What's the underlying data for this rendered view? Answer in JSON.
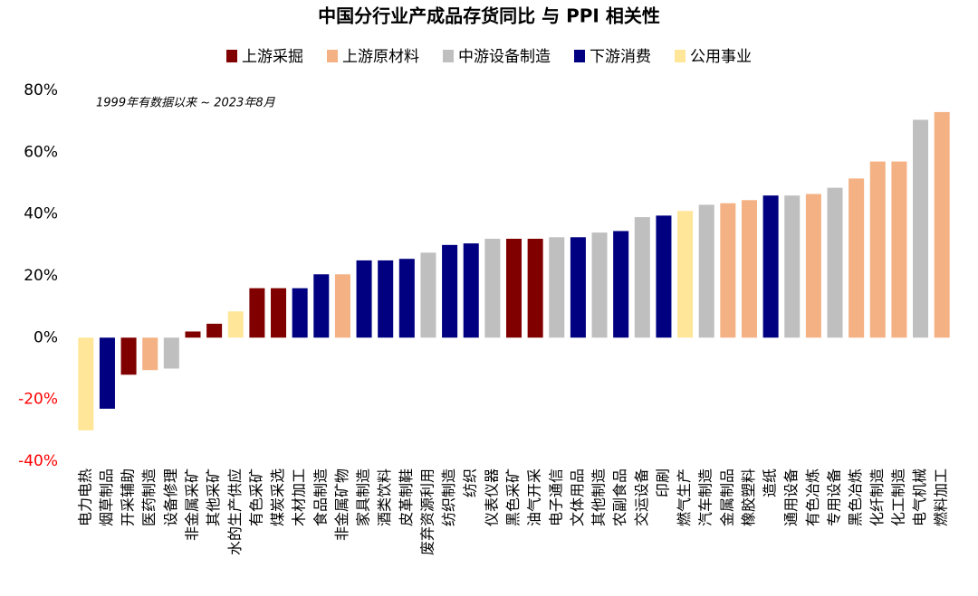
{
  "chart_data": {
    "type": "bar",
    "title": "中国分行业产成品存货同比 与 PPI 相关性",
    "annotation": "1999年有数据以来 ~ 2023年8月",
    "categories": [
      "电力电热",
      "烟草制品",
      "开采辅助",
      "医药制造",
      "设备修理",
      "非金属采矿",
      "其他采矿",
      "水的生产供应",
      "有色采矿",
      "煤炭采选",
      "木材加工",
      "食品制造",
      "非金属矿物",
      "家具制造",
      "酒类饮料",
      "皮革制鞋",
      "废弃资源利用",
      "纺织制造",
      "纺织",
      "仪表仪器",
      "黑色采矿",
      "油气开采",
      "电子通信",
      "文体用品",
      "其他制造",
      "农副食品",
      "交运设备",
      "印刷",
      "燃气生产",
      "汽车制造",
      "金属制品",
      "橡胶塑料",
      "造纸",
      "通用设备",
      "有色冶炼",
      "专用设备",
      "黑色冶炼",
      "化纤制造",
      "化工制造",
      "电气机械",
      "燃料加工"
    ],
    "series": [
      {
        "name": "上游采掘",
        "color": "#800000",
        "values": [
          null,
          null,
          -12,
          null,
          null,
          2,
          4.5,
          null,
          16,
          16,
          null,
          null,
          null,
          null,
          null,
          null,
          null,
          null,
          null,
          null,
          32,
          32,
          null,
          null,
          null,
          null,
          null,
          null,
          null,
          null,
          null,
          null,
          null,
          null,
          null,
          null,
          null,
          null,
          null,
          null,
          null
        ]
      },
      {
        "name": "上游原材料",
        "color": "#f4b183",
        "values": [
          null,
          null,
          null,
          -10.5,
          null,
          null,
          null,
          null,
          null,
          null,
          null,
          null,
          20.5,
          null,
          null,
          null,
          null,
          null,
          null,
          null,
          null,
          null,
          null,
          null,
          null,
          null,
          null,
          null,
          null,
          null,
          43.5,
          44.5,
          null,
          null,
          46.5,
          null,
          51.5,
          57,
          57,
          null,
          73
        ]
      },
      {
        "name": "中游设备制造",
        "color": "#bfbfbf",
        "values": [
          null,
          null,
          null,
          null,
          -10,
          null,
          null,
          null,
          null,
          null,
          null,
          null,
          null,
          null,
          null,
          null,
          27.5,
          null,
          null,
          32,
          null,
          null,
          32.5,
          null,
          34,
          null,
          39,
          null,
          null,
          43,
          null,
          null,
          null,
          46,
          null,
          48.5,
          null,
          null,
          null,
          70.5,
          null
        ]
      },
      {
        "name": "下游消费",
        "color": "#000080",
        "values": [
          null,
          -23,
          null,
          null,
          null,
          null,
          null,
          null,
          null,
          null,
          16,
          20.5,
          null,
          25,
          25,
          25.5,
          null,
          30,
          30.5,
          null,
          null,
          null,
          null,
          32.5,
          null,
          34.5,
          null,
          39.5,
          null,
          null,
          null,
          null,
          46,
          null,
          null,
          null,
          null,
          null,
          null,
          null,
          null
        ]
      },
      {
        "name": "公用事业",
        "color": "#ffe699",
        "values": [
          -30,
          null,
          null,
          null,
          null,
          null,
          null,
          8.5,
          null,
          null,
          null,
          null,
          null,
          null,
          null,
          null,
          null,
          null,
          null,
          null,
          null,
          null,
          null,
          null,
          null,
          null,
          null,
          null,
          41,
          null,
          null,
          null,
          null,
          null,
          null,
          null,
          null,
          null,
          null,
          null,
          null
        ]
      }
    ],
    "ylim": [
      -40,
      80
    ],
    "yticks": [
      {
        "value": -40,
        "label": "-40%"
      },
      {
        "value": -20,
        "label": "-20%"
      },
      {
        "value": 0,
        "label": "0%"
      },
      {
        "value": 20,
        "label": "20%"
      },
      {
        "value": 40,
        "label": "40%"
      },
      {
        "value": 60,
        "label": "60%"
      },
      {
        "value": 80,
        "label": "80%"
      }
    ],
    "grid": false,
    "legend": "top"
  }
}
